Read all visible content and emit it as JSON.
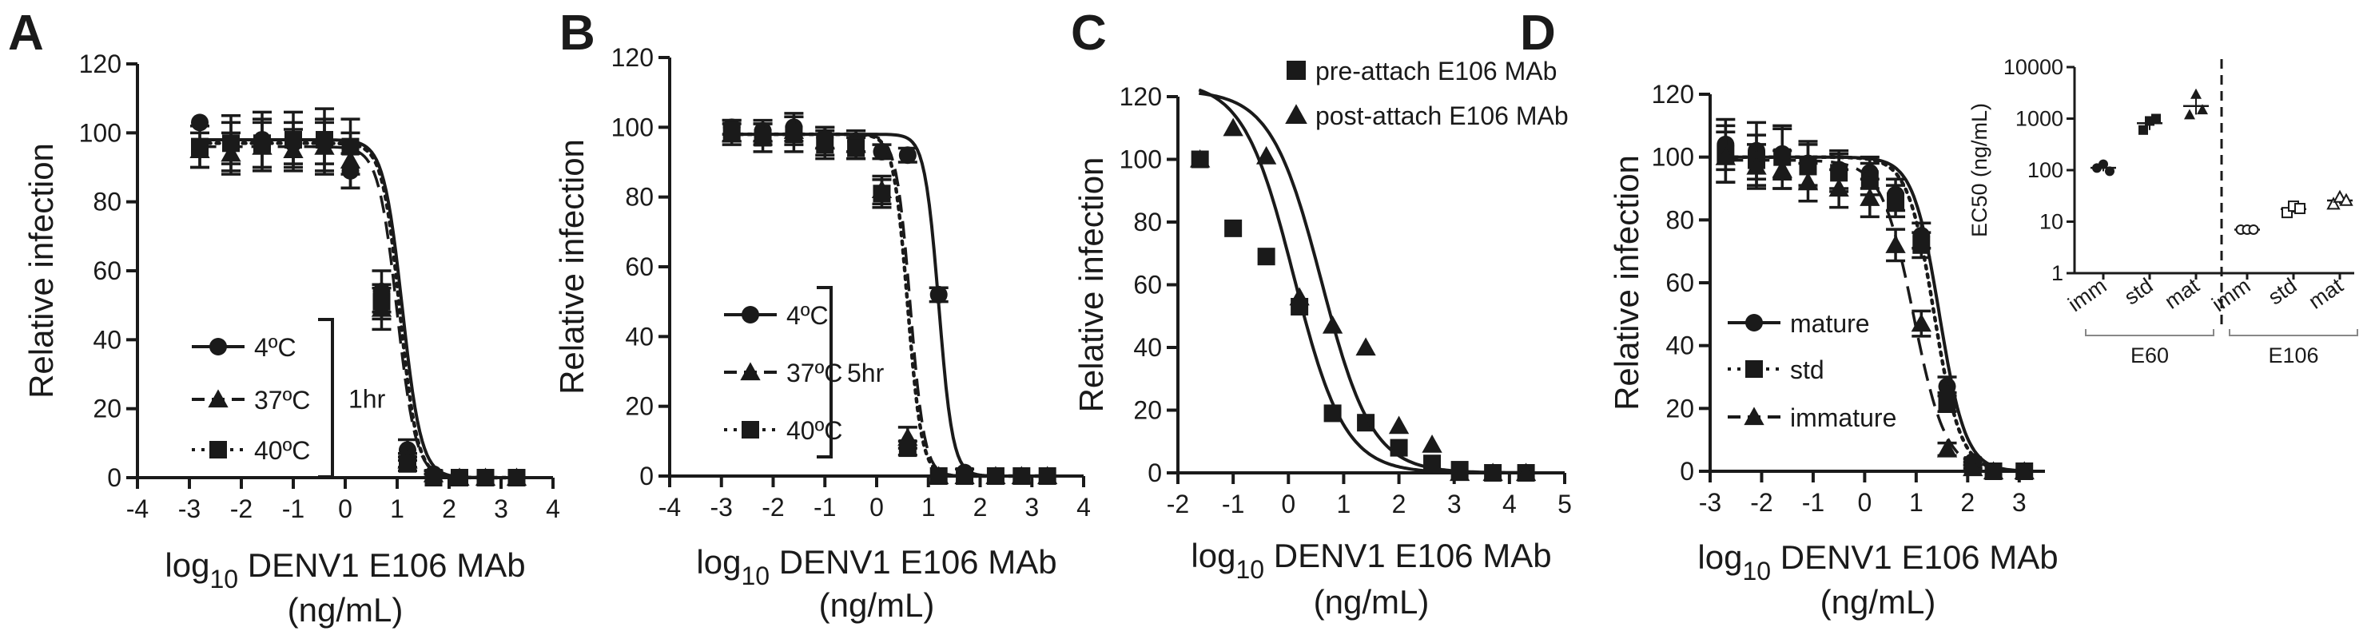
{
  "colors": {
    "ink": "#1a1a1a",
    "background": "#ffffff"
  },
  "chart_data": [
    {
      "id": "A",
      "type": "scatter",
      "panel_label": "A",
      "ylabel": "Relative infection",
      "xlabel_prefix": "log",
      "xlabel_sub": "10",
      "xlabel_rest": " DENV1 E106 MAb",
      "xlabel_line2": "(ng/mL)",
      "xlim": [
        -4,
        4
      ],
      "ylim": [
        0,
        120
      ],
      "xticks": [
        -4,
        -3,
        -2,
        -1,
        0,
        1,
        2,
        3,
        4
      ],
      "yticks": [
        0,
        20,
        40,
        60,
        80,
        100,
        120
      ],
      "legend_position": "bottom-left",
      "bracket_label": "1hr",
      "series": [
        {
          "name": "4ºC",
          "marker": "circle",
          "dash": "solid",
          "x": [
            -2.8,
            -2.2,
            -1.6,
            -1.0,
            -0.4,
            0.1,
            0.7,
            1.2,
            1.7,
            2.2,
            2.7,
            3.3
          ],
          "y": [
            103,
            97,
            98,
            97,
            97,
            89,
            54,
            8,
            1,
            0,
            0,
            0
          ],
          "err": [
            0,
            6,
            8,
            6,
            6,
            5,
            6,
            3,
            1,
            0,
            0,
            0
          ],
          "ec50": 1.1,
          "top": 98,
          "hill": 2.4
        },
        {
          "name": "37ºC",
          "marker": "triangle",
          "dash": "dashed",
          "x": [
            -2.8,
            -2.2,
            -1.6,
            -1.0,
            -0.4,
            0.1,
            0.7,
            1.2,
            1.7,
            2.2,
            2.7,
            3.3
          ],
          "y": [
            95,
            94,
            96,
            95,
            96,
            92,
            49,
            5,
            1,
            0,
            0,
            0
          ],
          "err": [
            5,
            6,
            7,
            6,
            8,
            8,
            6,
            2,
            1,
            0,
            0,
            0
          ],
          "ec50": 1.0,
          "top": 96,
          "hill": 2.4
        },
        {
          "name": "40ºC",
          "marker": "square",
          "dash": "dotted",
          "x": [
            -2.8,
            -2.2,
            -1.6,
            -1.0,
            -0.4,
            0.1,
            0.7,
            1.2,
            1.7,
            2.2,
            2.7,
            3.3
          ],
          "y": [
            96,
            97,
            97,
            98,
            98,
            96,
            51,
            4,
            0,
            0,
            0,
            0
          ],
          "err": [
            6,
            8,
            7,
            8,
            9,
            8,
            5,
            2,
            1,
            0,
            0,
            0
          ],
          "ec50": 1.05,
          "top": 97,
          "hill": 2.6
        }
      ]
    },
    {
      "id": "B",
      "type": "scatter",
      "panel_label": "B",
      "ylabel": "Relative infection",
      "xlabel_prefix": "log",
      "xlabel_sub": "10",
      "xlabel_rest": " DENV1 E106 MAb",
      "xlabel_line2": "(ng/mL)",
      "xlim": [
        -4,
        4
      ],
      "ylim": [
        0,
        120
      ],
      "xticks": [
        -4,
        -3,
        -2,
        -1,
        0,
        1,
        2,
        3,
        4
      ],
      "yticks": [
        0,
        20,
        40,
        60,
        80,
        100,
        120
      ],
      "legend_position": "middle-left",
      "bracket_label": "5hr",
      "series": [
        {
          "name": "4ºC",
          "marker": "circle",
          "dash": "solid",
          "x": [
            -2.8,
            -2.2,
            -1.6,
            -1.0,
            -0.4,
            0.1,
            0.6,
            1.2,
            1.7,
            2.3,
            2.8,
            3.3
          ],
          "y": [
            100,
            99,
            100,
            97,
            96,
            93,
            92,
            52,
            1,
            0,
            0,
            0
          ],
          "err": [
            2,
            3,
            4,
            3,
            3,
            2,
            2,
            2,
            1,
            0,
            0,
            0
          ],
          "ec50": 1.2,
          "top": 98,
          "hill": 3.2
        },
        {
          "name": "37ºC",
          "marker": "triangle",
          "dash": "dashed",
          "x": [
            -2.8,
            -2.2,
            -1.6,
            -1.0,
            -0.4,
            0.1,
            0.6,
            1.2,
            1.7,
            2.3,
            2.8,
            3.3
          ],
          "y": [
            98,
            98,
            99,
            96,
            95,
            82,
            11,
            0,
            0,
            0,
            0,
            0
          ],
          "err": [
            3,
            3,
            4,
            4,
            4,
            4,
            3,
            0,
            0,
            0,
            0,
            0
          ],
          "ec50": 0.65,
          "top": 98,
          "hill": 3.2
        },
        {
          "name": "40ºC",
          "marker": "square",
          "dash": "dotted",
          "x": [
            -2.8,
            -2.2,
            -1.6,
            -1.0,
            -0.4,
            0.1,
            0.6,
            1.2,
            1.7,
            2.3,
            2.8,
            3.3
          ],
          "y": [
            99,
            97,
            98,
            95,
            94,
            81,
            8,
            0,
            0,
            0,
            0,
            0
          ],
          "err": [
            3,
            4,
            5,
            4,
            3,
            4,
            2,
            0,
            0,
            0,
            0,
            0
          ],
          "ec50": 0.6,
          "top": 98,
          "hill": 3.2
        }
      ]
    },
    {
      "id": "C",
      "type": "scatter",
      "panel_label": "C",
      "ylabel": "Relative infection",
      "xlabel_prefix": "log",
      "xlabel_sub": "10",
      "xlabel_rest": " DENV1 E106 MAb",
      "xlabel_line2": "(ng/mL)",
      "xlim": [
        -2,
        5
      ],
      "ylim": [
        0,
        120
      ],
      "xticks": [
        -2,
        -1,
        0,
        1,
        2,
        3,
        4,
        5
      ],
      "yticks": [
        0,
        20,
        40,
        60,
        80,
        100,
        120
      ],
      "legend_position": "top-right",
      "series": [
        {
          "name": "pre-attach E106 MAb",
          "marker": "square",
          "dash": "solid",
          "x": [
            -1.6,
            -1.0,
            -0.4,
            0.2,
            0.8,
            1.4,
            2.0,
            2.6,
            3.1,
            3.7,
            4.3
          ],
          "y": [
            100,
            78,
            69,
            53,
            19,
            16,
            8,
            3,
            1,
            0,
            0
          ],
          "ec50": 0.1,
          "top": 125,
          "hill": 0.95
        },
        {
          "name": "post-attach E106 MAb",
          "marker": "triangle",
          "dash": "solid",
          "x": [
            -1.6,
            -1.0,
            -0.4,
            0.2,
            0.8,
            1.4,
            2.0,
            2.6,
            3.1,
            3.7,
            4.3
          ],
          "y": [
            100,
            110,
            101,
            56,
            47,
            40,
            15,
            9,
            0,
            0,
            0
          ],
          "ec50": 0.6,
          "top": 122,
          "hill": 0.95
        }
      ]
    },
    {
      "id": "D",
      "type": "scatter",
      "panel_label": "D",
      "ylabel": "Relative infection",
      "xlabel_prefix": "log",
      "xlabel_sub": "10",
      "xlabel_rest": " DENV1 E106 MAb",
      "xlabel_line2": "(ng/mL)",
      "xlim": [
        -3,
        3.5
      ],
      "ylim": [
        0,
        120
      ],
      "xticks": [
        -3,
        -2,
        -1,
        0,
        1,
        2,
        3
      ],
      "yticks": [
        0,
        20,
        40,
        60,
        80,
        100,
        120
      ],
      "legend_position": "bottom-left",
      "series": [
        {
          "name": "mature",
          "marker": "circle",
          "dash": "solid",
          "x": [
            -2.7,
            -2.1,
            -1.6,
            -1.1,
            -0.5,
            0.1,
            0.6,
            1.1,
            1.6,
            2.1,
            2.5,
            3.1
          ],
          "y": [
            104,
            102,
            101,
            98,
            96,
            95,
            88,
            75,
            27,
            3,
            0,
            0
          ],
          "err": [
            8,
            9,
            8,
            7,
            6,
            5,
            5,
            4,
            3,
            1,
            0,
            0
          ],
          "ec50": 1.45,
          "top": 100,
          "hill": 1.7
        },
        {
          "name": "std",
          "marker": "square",
          "dash": "dotted",
          "x": [
            -2.7,
            -2.1,
            -1.6,
            -1.1,
            -0.5,
            0.1,
            0.6,
            1.1,
            1.6,
            2.1,
            2.5,
            3.1
          ],
          "y": [
            101,
            99,
            100,
            97,
            95,
            93,
            86,
            72,
            22,
            2,
            0,
            0
          ],
          "err": [
            9,
            8,
            10,
            7,
            6,
            5,
            5,
            4,
            3,
            1,
            0,
            0
          ],
          "ec50": 1.35,
          "top": 100,
          "hill": 1.7
        },
        {
          "name": "immature",
          "marker": "triangle",
          "dash": "dashed",
          "x": [
            -2.7,
            -2.1,
            -1.6,
            -1.1,
            -0.5,
            0.1,
            0.6,
            1.1,
            1.6,
            2.1,
            2.5,
            3.1
          ],
          "y": [
            100,
            97,
            96,
            92,
            90,
            87,
            72,
            47,
            7,
            1,
            0,
            0
          ],
          "err": [
            8,
            7,
            6,
            6,
            6,
            6,
            5,
            4,
            2,
            1,
            0,
            0
          ],
          "ec50": 0.95,
          "top": 99,
          "hill": 1.4
        }
      ]
    },
    {
      "id": "D-inset",
      "type": "scatter",
      "ylabel": "EC50 (ng/mL)",
      "yscale": "log",
      "ylim": [
        1,
        10000
      ],
      "yticks": [
        1,
        10,
        100,
        1000,
        10000
      ],
      "ytick_labels": [
        "1",
        "10",
        "100",
        "1000",
        "10000"
      ],
      "categories": [
        "imm",
        "std",
        "mat",
        "imm",
        "std",
        "mat"
      ],
      "groups": [
        {
          "name": "E60",
          "span": [
            0,
            2
          ]
        },
        {
          "name": "E106",
          "span": [
            3,
            5
          ]
        }
      ],
      "series": [
        {
          "name": "E60",
          "marker": "filled",
          "points": [
            {
              "cat": 0,
              "values": [
                110,
                130,
                95
              ]
            },
            {
              "cat": 1,
              "values": [
                600,
                900,
                1000
              ]
            },
            {
              "cat": 2,
              "values": [
                1200,
                3000,
                1500
              ]
            }
          ]
        },
        {
          "name": "E106",
          "marker": "open",
          "points": [
            {
              "cat": 3,
              "values": [
                7,
                7,
                7
              ]
            },
            {
              "cat": 4,
              "values": [
                15,
                20,
                18
              ]
            },
            {
              "cat": 5,
              "values": [
                22,
                30,
                26
              ]
            }
          ]
        }
      ]
    }
  ]
}
